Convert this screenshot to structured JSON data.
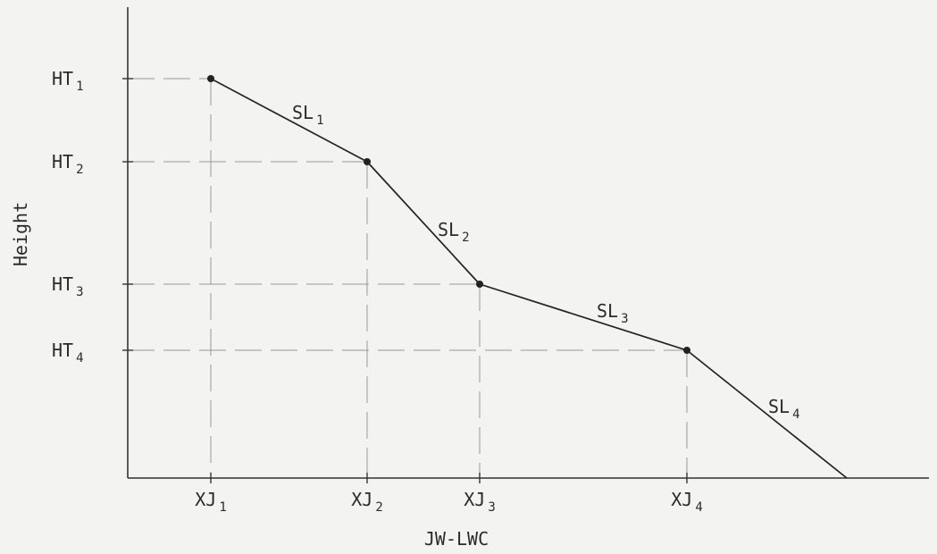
{
  "chart_data": {
    "type": "line",
    "xlabel": "JW-LWC",
    "ylabel": "Height",
    "x_ticks": [
      {
        "main": "XJ",
        "sub": "1",
        "value": 1
      },
      {
        "main": "XJ",
        "sub": "2",
        "value": 2
      },
      {
        "main": "XJ",
        "sub": "3",
        "value": 3
      },
      {
        "main": "XJ",
        "sub": "4",
        "value": 4
      }
    ],
    "y_ticks": [
      {
        "main": "HT",
        "sub": "1",
        "value": 4
      },
      {
        "main": "HT",
        "sub": "2",
        "value": 3
      },
      {
        "main": "HT",
        "sub": "3",
        "value": 2
      },
      {
        "main": "HT",
        "sub": "4",
        "value": 1
      }
    ],
    "points": [
      {
        "x": 1,
        "y": 4
      },
      {
        "x": 2,
        "y": 3
      },
      {
        "x": 3,
        "y": 2
      },
      {
        "x": 4,
        "y": 1
      },
      {
        "x": 5,
        "y": 0
      }
    ],
    "segment_labels": [
      {
        "main": "SL",
        "sub": "1"
      },
      {
        "main": "SL",
        "sub": "2"
      },
      {
        "main": "SL",
        "sub": "3"
      },
      {
        "main": "SL",
        "sub": "4"
      }
    ],
    "grid": true,
    "legend": "none"
  }
}
